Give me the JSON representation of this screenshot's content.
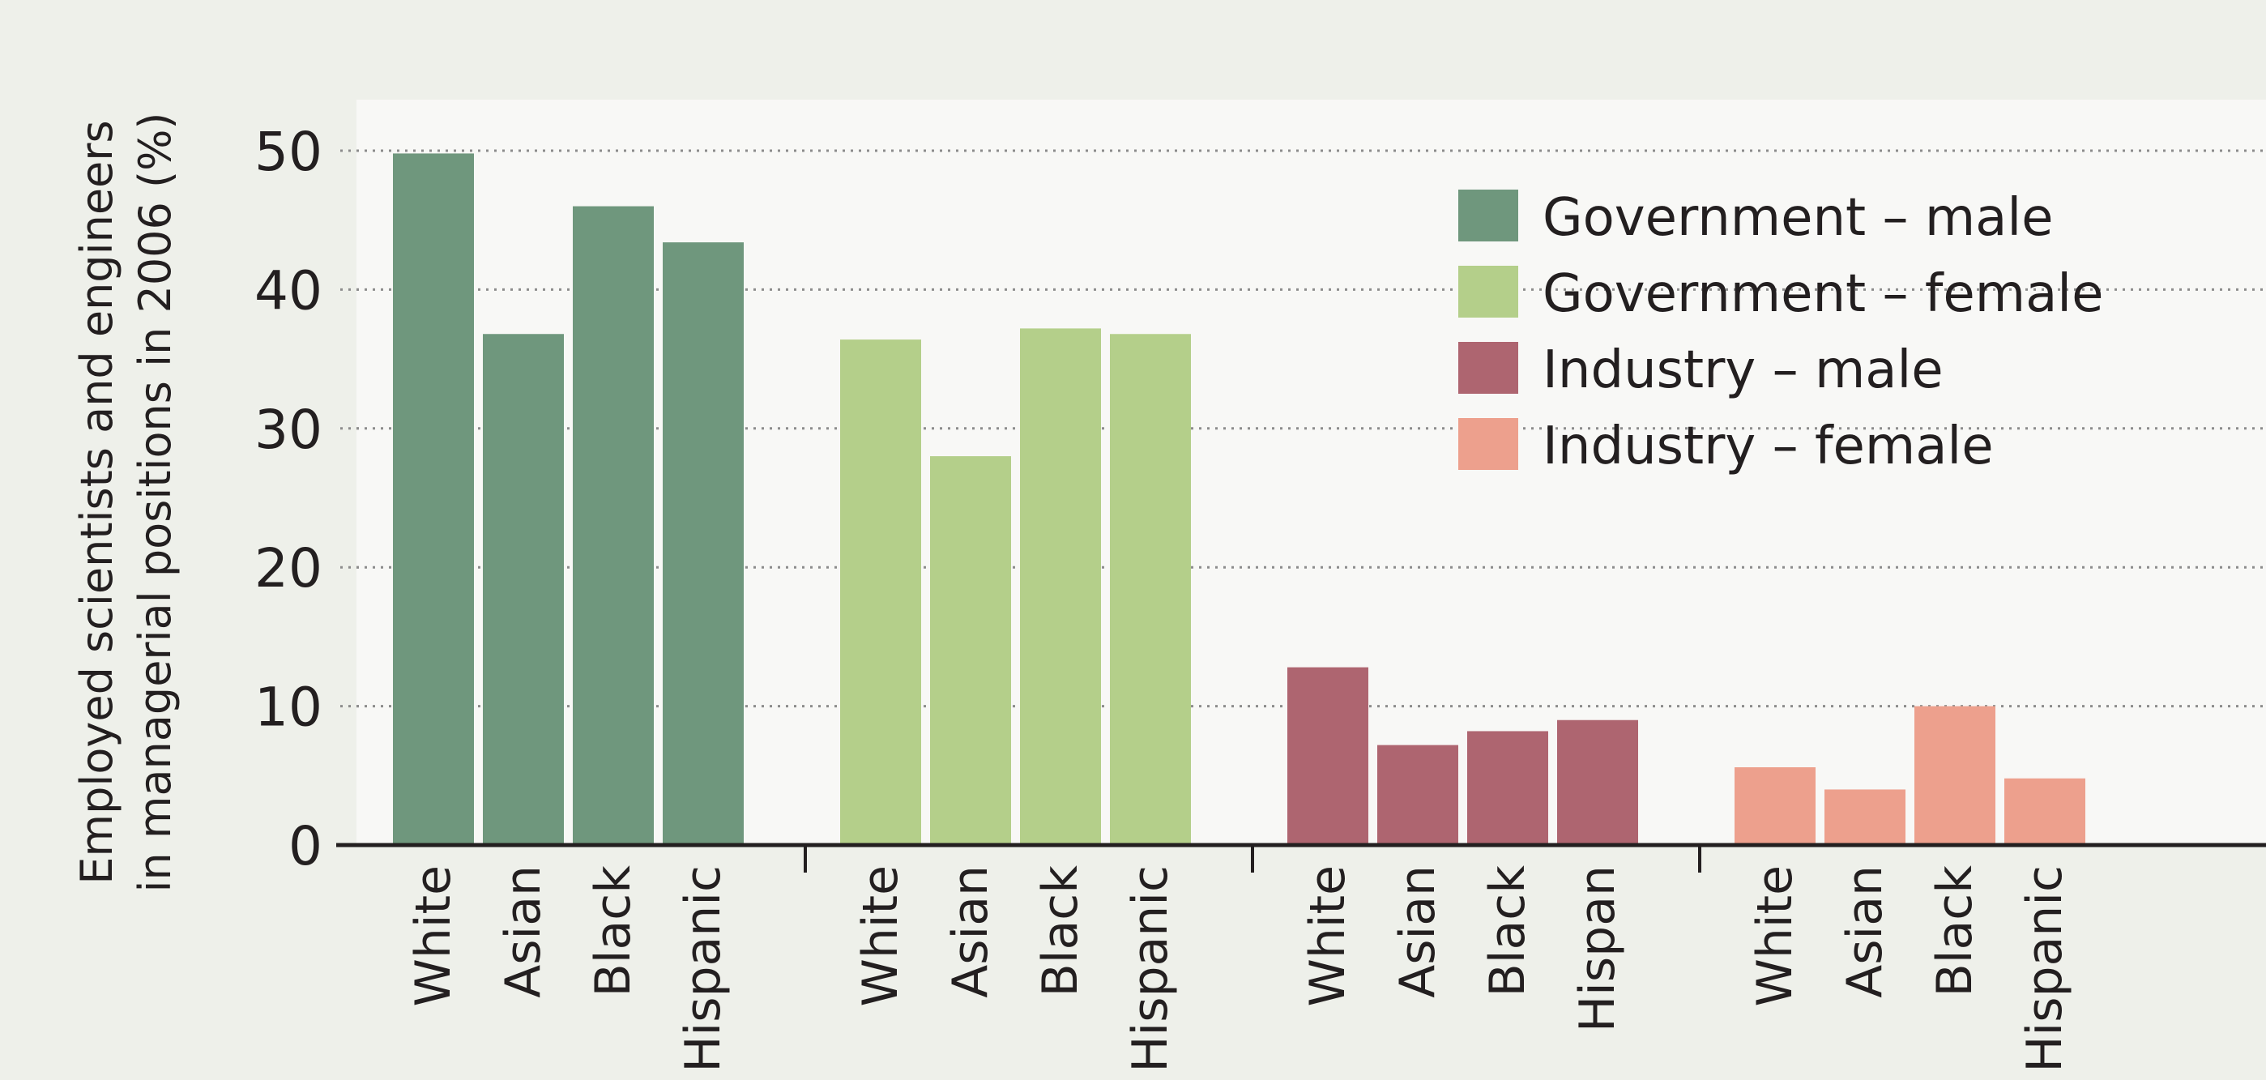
{
  "chart_data": {
    "type": "bar",
    "ylabel_lines": [
      "Employed scientists and engineers",
      "in managerial positions in 2006 (%)"
    ],
    "ylim": [
      0,
      50
    ],
    "yticks": [
      0,
      10,
      20,
      30,
      40,
      50
    ],
    "grid": "horizontal dotted",
    "legend_position": "top-right",
    "groups": [
      {
        "name": "Government – male",
        "color": "#6f977d",
        "categories": [
          "White",
          "Asian",
          "Black",
          "Hispanic"
        ],
        "values": [
          49.8,
          36.8,
          46.0,
          43.4
        ]
      },
      {
        "name": "Government – female",
        "color": "#b4cf8a",
        "categories": [
          "White",
          "Asian",
          "Black",
          "Hispanic"
        ],
        "values": [
          36.4,
          28.0,
          37.2,
          36.8
        ]
      },
      {
        "name": "Industry – male",
        "color": "#ae6570",
        "categories": [
          "White",
          "Asian",
          "Black",
          "Hispan"
        ],
        "values": [
          12.8,
          7.2,
          8.2,
          9.0
        ]
      },
      {
        "name": "Industry – female",
        "color": "#eda08d",
        "categories": [
          "White",
          "Asian",
          "Black",
          "Hispanic"
        ],
        "values": [
          5.6,
          4.0,
          10.0,
          4.8
        ]
      }
    ]
  }
}
